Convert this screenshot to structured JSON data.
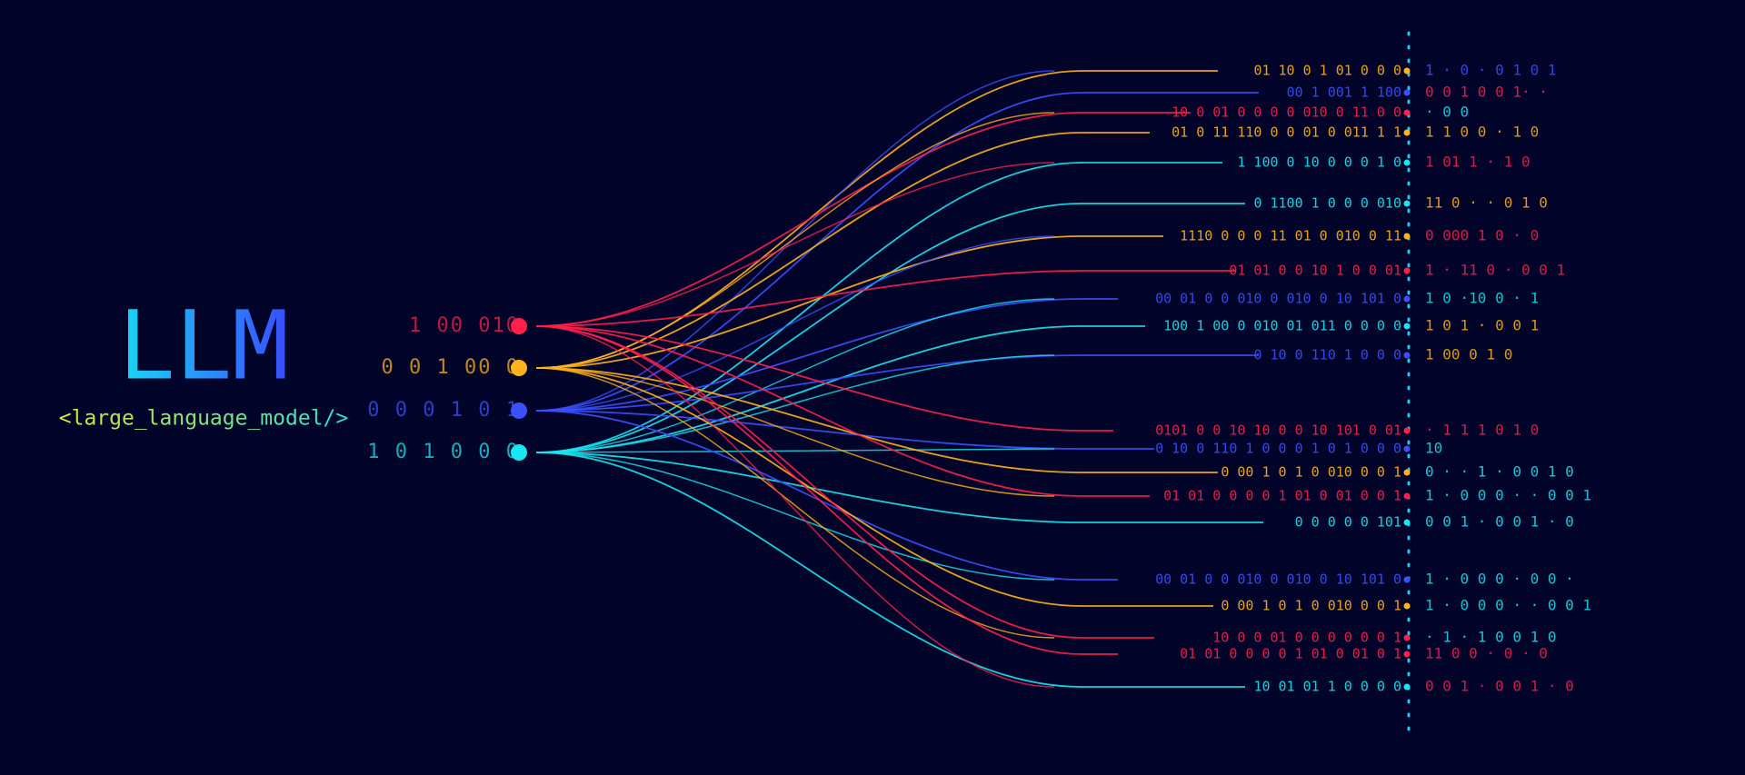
{
  "header": {
    "title": "LLM",
    "subtitle": "<large_language_model/>"
  },
  "inputs": [
    {
      "label": "1 00  010"
    },
    {
      "label": "0 0 1  00 0"
    },
    {
      "label": "0 0 0 1 0 1"
    },
    {
      "label": "1  0 1 0  0 0"
    }
  ],
  "streams": [
    {
      "bits": "01 10 0 1 01 0 0   0",
      "scatter": "1 ·   0 ·      0 1   0  1"
    },
    {
      "bits": "00 1 001 1 100",
      "scatter": "0  0 1 0   0      1· ·"
    },
    {
      "bits": "10 0 01  0 0 0 0  010 0 11 0 0",
      "scatter": "       ·    0  0"
    },
    {
      "bits": "01 0 11  110 0 0 01 0 011 1 1",
      "scatter": "1 1    0    0    ·  1   0"
    },
    {
      "bits": "1  100 0 10 0 0 0 1 0",
      "scatter": "1 01     1   · 1    0"
    },
    {
      "bits": "0  1100 1 0 0 0 010",
      "scatter": "11 0  ·  · 0      1 0"
    },
    {
      "bits": "1110 0 0 0 11 01 0 010 0 11",
      "scatter": "0   000   1    0    · 0"
    },
    {
      "bits": "01 01 0 0  10 1 0 0 01",
      "scatter": "1 · 11 0 ·   0         0 1"
    },
    {
      "bits": "00 01 0 0 010 0 010 0 10 101 0",
      "scatter": "1   0 ·10     0 · 1"
    },
    {
      "bits": "100 1 00 0 010 01 011 0 0 0 0",
      "scatter": "1   0   1  · 0 0 1"
    },
    {
      "bits": "0 10 0 110 1 0 0 0",
      "scatter": "1   00    0   1   0"
    },
    {
      "bits": "0101 0 0 10  10 0 0  10 101 0 01",
      "scatter": "· 1 1     1       0   1    0"
    },
    {
      "bits": "0 10 0 110 1 0 0 0  1  0 1 0 0 0",
      "scatter": "10"
    },
    {
      "bits": "0 00  1 0 1 0 010 0 0 1",
      "scatter": "0 · ·  1    · 0   0   1    0"
    },
    {
      "bits": "01 01 0 0 0 0 1 01 0 01  0 0 1",
      "scatter": "1 ·  0 0     0 · ·  0 0 1"
    },
    {
      "bits": "0 0 0   0 0 101",
      "scatter": "0   0   1  · 0 0 1 ·      0"
    },
    {
      "bits": "00 01 0 0 010 0 010 0 10 101 0",
      "scatter": "1 ·  0 0    0     ·  0   0     ·"
    },
    {
      "bits": "0 00  1 0 1 0 010 0 0 1",
      "scatter": "1 ·  0 0   0 · ·  0 0  1"
    },
    {
      "bits": "10 0 0 01  0 0 0  0  0  0 1",
      "scatter": "· 1  · 1 0  0      1 0"
    },
    {
      "bits": "01 01 0 0 0 0 1 01 0 01 0  1",
      "scatter": "11 0  0   ·    0 · 0"
    },
    {
      "bits": "10 01 01 1 0 0 0 0",
      "scatter": "0   0   1  · 0 0 1 ·      0"
    }
  ]
}
